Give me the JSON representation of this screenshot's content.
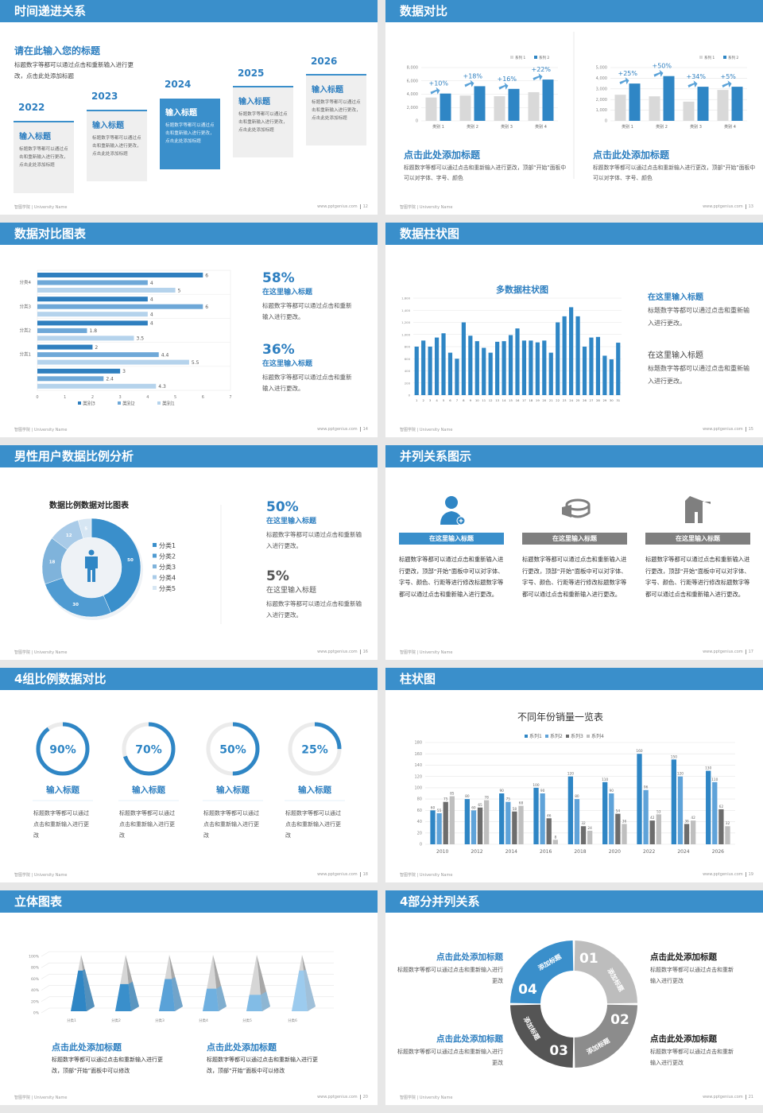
{
  "footer": {
    "left": "智图学院 | University Name",
    "site": "www.pptgenius.com"
  },
  "slides": [
    {
      "title": "时间递进关系",
      "page": "12",
      "heading": "请在此输入您的标题",
      "desc": "标题数字等都可以通过点击和重新输入进行更改，点击此处添加标题",
      "active_index": 2,
      "timeline": [
        {
          "year": "2022",
          "title": "输入标题",
          "text": "标题数字等都可以通过点击和重新输入进行更改，点击此处添加标题"
        },
        {
          "year": "2023",
          "title": "输入标题",
          "text": "标题数字等都可以通过点击和重新输入进行更改，点击此处添加标题"
        },
        {
          "year": "2024",
          "title": "输入标题",
          "text": "标题数字等都可以通过点击和重新输入进行更改，点击此处添加标题"
        },
        {
          "year": "2025",
          "title": "输入标题",
          "text": "标题数字等都可以通过点击和重新输入进行更改，点击此处添加标题"
        },
        {
          "year": "2026",
          "title": "输入标题",
          "text": "标题数字等都可以通过点击和重新输入进行更改，点击此处添加标题"
        }
      ]
    },
    {
      "title": "数据对比",
      "page": "13",
      "panels": [
        {
          "title": "点击此处添加标题",
          "text": "标题数字等都可以通过点击和重新输入进行更改，顶部“开始”面板中可以对字体、字号、颜色"
        },
        {
          "title": "点击此处添加标题",
          "text": "标题数字等都可以通过点击和重新输入进行更改，顶部“开始”面板中可以对字体、字号、颜色"
        }
      ]
    },
    {
      "title": "数据对比图表",
      "page": "14",
      "stats": [
        {
          "value": "58%",
          "title": "在这里输入标题",
          "text": "标题数字等都可以通过点击和重新输入进行更改。"
        },
        {
          "value": "36%",
          "title": "在这里输入标题",
          "text": "标题数字等都可以通过点击和重新输入进行更改。"
        }
      ]
    },
    {
      "title": "数据柱状图",
      "page": "15",
      "notes": [
        {
          "title": "在这里输入标题",
          "text": "标题数字等都可以通过点击和重新输入进行更改。"
        },
        {
          "title": "在这里输入标题",
          "text": "标题数字等都可以通过点击和重新输入进行更改。"
        }
      ]
    },
    {
      "title": "男性用户数据比例分析",
      "page": "16",
      "stats": [
        {
          "value": "50%",
          "title": "在这里输入标题",
          "text": "标题数字等都可以通过点击和重新输入进行更改。"
        },
        {
          "value": "5%",
          "title": "在这里输入标题",
          "text": "标题数字等都可以通过点击和重新输入进行更改。"
        }
      ]
    },
    {
      "title": "并列关系图示",
      "page": "17",
      "columns": [
        {
          "icon": "user-add-icon",
          "label": "在这里输入标题",
          "color": "#3a8fcb",
          "text": "标题数字等都可以通过点击和重新输入进行更改，顶部“开始”面板中可以对字体、字号、颜色、行距等进行修改标题数字等都可以通过点击和重新输入进行更改。"
        },
        {
          "icon": "pie-chart-3d-icon",
          "label": "在这里输入标题",
          "color": "#7f7f7f",
          "text": "标题数字等都可以通过点击和重新输入进行更改，顶部“开始”面板中可以对字体、字号、颜色、行距等进行修改标题数字等都可以通过点击和重新输入进行更改。"
        },
        {
          "icon": "building-icon",
          "label": "在这里输入标题",
          "color": "#7f7f7f",
          "text": "标题数字等都可以通过点击和重新输入进行更改，顶部“开始”面板中可以对字体、字号、颜色、行距等进行修改标题数字等都可以通过点击和重新输入进行更改。"
        }
      ]
    },
    {
      "title": "4组比例数据对比",
      "page": "18",
      "rings": [
        {
          "value": "90%",
          "percent": 90,
          "title": "输入标题",
          "text": "标题数字等都可以通过点击和重新输入进行更改"
        },
        {
          "value": "70%",
          "percent": 70,
          "title": "输入标题",
          "text": "标题数字等都可以通过点击和重新输入进行更改"
        },
        {
          "value": "50%",
          "percent": 50,
          "title": "输入标题",
          "text": "标题数字等都可以通过点击和重新输入进行更改"
        },
        {
          "value": "25%",
          "percent": 25,
          "title": "输入标题",
          "text": "标题数字等都可以通过点击和重新输入进行更改"
        }
      ]
    },
    {
      "title": "柱状图",
      "page": "19"
    },
    {
      "title": "立体图表",
      "page": "20",
      "panels": [
        {
          "title": "点击此处添加标题",
          "text": "标题数字等都可以通过点击和重新输入进行更改，顶部“开始”面板中可以修改"
        },
        {
          "title": "点击此处添加标题",
          "text": "标题数字等都可以通过点击和重新输入进行更改，顶部“开始”面板中可以修改"
        }
      ]
    },
    {
      "title": "4部分并列关系",
      "page": "21",
      "cycle": [
        {
          "num": "01",
          "label": "添加标题",
          "color": "#bdbdbd"
        },
        {
          "num": "02",
          "label": "添加标题",
          "color": "#8c8c8c"
        },
        {
          "num": "03",
          "label": "添加标题",
          "color": "#555555"
        },
        {
          "num": "04",
          "label": "添加标题",
          "color": "#3a8fcb"
        }
      ],
      "blocks": [
        {
          "title": "点击此处添加标题",
          "text": "标题数字等都可以通过点击和重新输入进行更改"
        },
        {
          "title": "点击此处添加标题",
          "text": "标题数字等都可以通过点击和重新输入进行更改"
        },
        {
          "title": "点击此处添加标题",
          "text": "标题数字等都可以通过点击和重新输入进行更改"
        },
        {
          "title": "点击此处添加标题",
          "text": "标题数字等都可以通过点击和重新输入进行更改"
        }
      ]
    }
  ],
  "chart_data": [
    {
      "type": "bar",
      "categories": [
        "类别 1",
        "类别 2",
        "类别 3",
        "类别 4"
      ],
      "series": [
        {
          "name": "系列 1",
          "color": "#d9d9d9",
          "values": [
            3500,
            3800,
            3700,
            4300
          ]
        },
        {
          "name": "系列 2",
          "color": "#2f86c5",
          "values": [
            4100,
            5200,
            4800,
            6200
          ]
        }
      ],
      "yticks": [
        "0",
        "2,000",
        "4,000",
        "6,000",
        "8,000"
      ],
      "ylim": [
        0,
        8000
      ],
      "annotations": [
        "+10%",
        "+18%",
        "+16%",
        "+22%"
      ],
      "legend": "top-right",
      "grid": true
    },
    {
      "type": "bar",
      "categories": [
        "类别 1",
        "类别 2",
        "类别 3",
        "类别 4"
      ],
      "series": [
        {
          "name": "系列 1",
          "color": "#d9d9d9",
          "values": [
            2450,
            2300,
            1800,
            2900
          ]
        },
        {
          "name": "系列 2",
          "color": "#2f86c5",
          "values": [
            3500,
            4200,
            3200,
            3200
          ]
        }
      ],
      "yticks": [
        "0",
        "1,000",
        "2,000",
        "3,000",
        "4,000",
        "5,000"
      ],
      "ylim": [
        0,
        5000
      ],
      "annotations": [
        "+25%",
        "+50%",
        "+34%",
        "+5%"
      ],
      "legend": "top-right",
      "grid": true
    },
    {
      "type": "bar",
      "orientation": "horizontal",
      "categories": [
        "分类4",
        "分类3",
        "分类2",
        "分类1",
        ""
      ],
      "series": [
        {
          "name": "类别3",
          "color": "#2f7fbf",
          "values": [
            6,
            4,
            4,
            2,
            3
          ]
        },
        {
          "name": "类别2",
          "color": "#6ea8d8",
          "values": [
            4,
            6,
            1.8,
            4.4,
            2.4
          ]
        },
        {
          "name": "类别1",
          "color": "#b5d3ec",
          "values": [
            5,
            4,
            3.5,
            5.5,
            4.3
          ]
        }
      ],
      "xticks": [
        "0",
        "1",
        "2",
        "3",
        "4",
        "5",
        "6",
        "7"
      ],
      "xlim": [
        0,
        7
      ],
      "legend": "bottom",
      "grid": true
    },
    {
      "type": "bar",
      "title": "多数据柱状图",
      "categories": [
        "1",
        "2",
        "3",
        "4",
        "5",
        "6",
        "7",
        "8",
        "9",
        "10",
        "11",
        "12",
        "13",
        "14",
        "15",
        "16",
        "17",
        "18",
        "19",
        "20",
        "21",
        "22",
        "23",
        "24",
        "25",
        "26",
        "27",
        "28",
        "29",
        "30",
        "31"
      ],
      "series": [
        {
          "color": "#2f86c5",
          "values": [
            800,
            900,
            800,
            950,
            1020,
            700,
            600,
            1200,
            980,
            890,
            780,
            700,
            880,
            890,
            990,
            1100,
            900,
            900,
            870,
            900,
            700,
            1200,
            1300,
            1450,
            1300,
            800,
            950,
            960,
            650,
            590,
            865
          ]
        }
      ],
      "yticks": [
        "0",
        "200",
        "400",
        "600",
        "800",
        "1,000",
        "1,200",
        "1,400",
        "1,600"
      ],
      "ylim": [
        0,
        1600
      ],
      "grid": true
    },
    {
      "type": "pie",
      "donut": true,
      "title": "数据比例数据对比图表",
      "categories": [
        "分类1",
        "分类2",
        "分类3",
        "分类4",
        "分类5"
      ],
      "values": [
        50,
        30,
        18,
        12,
        5
      ],
      "colors": [
        "#3a8fcb",
        "#4f9bd2",
        "#7fb3db",
        "#a9cbe8",
        "#d6e6f3"
      ],
      "legend": "right"
    },
    {
      "type": "bar",
      "title": "不同年份销量一览表",
      "categories": [
        "2010",
        "2012",
        "2014",
        "2016",
        "2018",
        "2020",
        "2022",
        "2024",
        "2026"
      ],
      "series": [
        {
          "name": "系列1",
          "color": "#2f86c5",
          "values": [
            60,
            80,
            90,
            100,
            120,
            110,
            160,
            150,
            130
          ]
        },
        {
          "name": "系列2",
          "color": "#5fa3d9",
          "values": [
            55,
            60,
            75,
            90,
            80,
            90,
            96,
            120,
            110
          ]
        },
        {
          "name": "系列3",
          "color": "#6d6d6d",
          "values": [
            75,
            65,
            58,
            46,
            32,
            54,
            42,
            36,
            62
          ]
        },
        {
          "name": "系列4",
          "color": "#bfbfbf",
          "values": [
            85,
            78,
            68,
            8,
            24,
            36,
            53,
            42,
            32
          ]
        }
      ],
      "yticks": [
        "0",
        "20",
        "40",
        "60",
        "80",
        "100",
        "120",
        "140",
        "160",
        "180"
      ],
      "ylim": [
        0,
        180
      ],
      "legend": "top",
      "grid": true
    },
    {
      "type": "bar",
      "style": "3d-pyramid",
      "categories": [
        "分类1",
        "分类2",
        "分类3",
        "分类4",
        "分类5",
        "分类6"
      ],
      "values": [
        72,
        48,
        57,
        40,
        29,
        72
      ],
      "colors": [
        "#2f86c5",
        "#3a8fcb",
        "#5aa2d8",
        "#6fb0e0",
        "#82bce6",
        "#9ccbee"
      ],
      "yticks": [
        "0%",
        "20%",
        "40%",
        "60%",
        "80%",
        "100%"
      ],
      "ylim": [
        0,
        100
      ],
      "grid": true
    }
  ]
}
